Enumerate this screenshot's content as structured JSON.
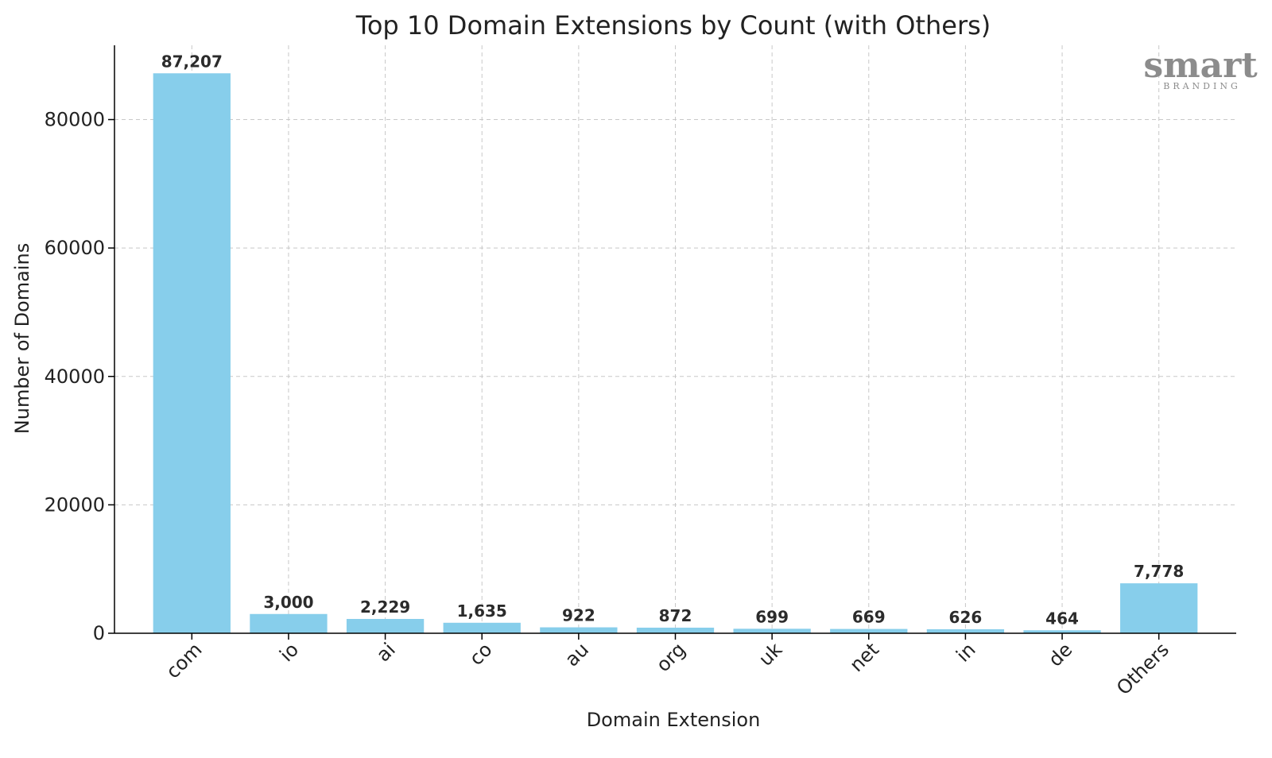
{
  "chart_data": {
    "type": "bar",
    "title": "Top 10 Domain Extensions by Count (with Others)",
    "xlabel": "Domain Extension",
    "ylabel": "Number of Domains",
    "categories": [
      "com",
      "io",
      "ai",
      "co",
      "au",
      "org",
      "uk",
      "net",
      "in",
      "de",
      "Others"
    ],
    "values": [
      87207,
      3000,
      2229,
      1635,
      922,
      872,
      699,
      669,
      626,
      464,
      7778
    ],
    "value_labels": [
      "87,207",
      "3,000",
      "2,229",
      "1,635",
      "922",
      "872",
      "699",
      "669",
      "626",
      "464",
      "7,778"
    ],
    "ylim": [
      0,
      91570
    ],
    "yticks": [
      0,
      20000,
      40000,
      60000,
      80000
    ],
    "grid": true,
    "bar_color": "#87ceeb"
  },
  "watermark": {
    "main": "smart",
    "sub": "BRANDING"
  }
}
